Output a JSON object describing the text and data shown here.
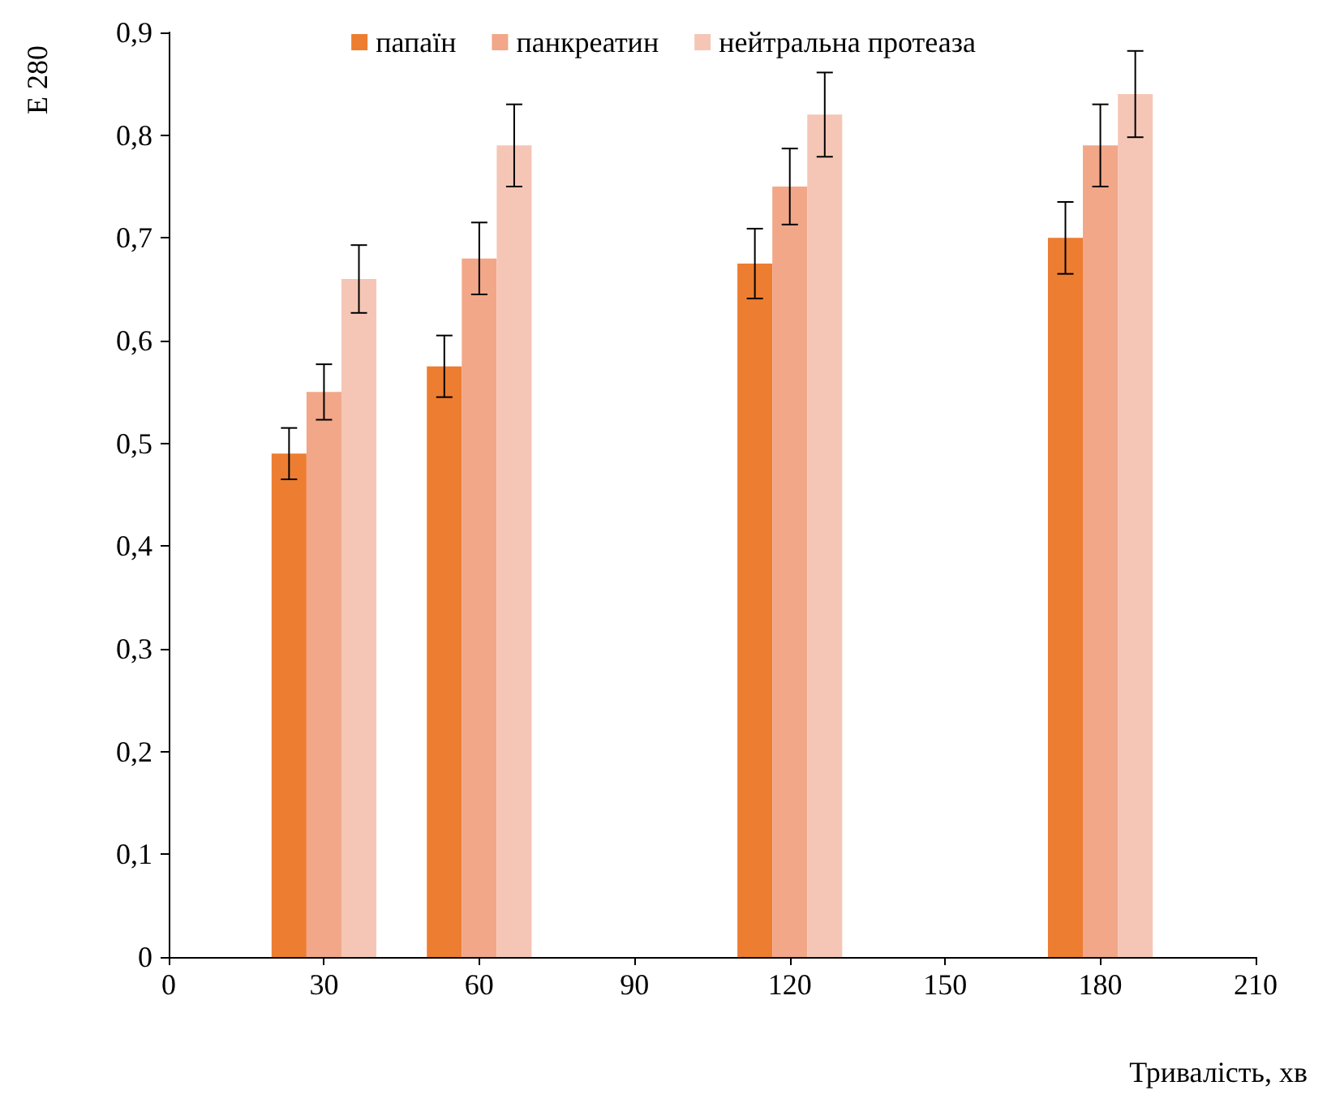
{
  "chart_data": {
    "type": "bar",
    "xlabel": "Тривалість, хв",
    "ylabel": "E 280",
    "x": [
      30,
      60,
      120,
      180
    ],
    "series": [
      {
        "name": "папаїн",
        "color": "#ed7d31",
        "values": [
          0.49,
          0.575,
          0.675,
          0.7
        ],
        "errors": [
          0.025,
          0.03,
          0.034,
          0.035
        ]
      },
      {
        "name": "панкреатин",
        "color": "#f1a788",
        "values": [
          0.55,
          0.68,
          0.75,
          0.79
        ],
        "errors": [
          0.027,
          0.035,
          0.037,
          0.04
        ]
      },
      {
        "name": "нейтральна протеаза",
        "color": "#f5c6b6",
        "values": [
          0.66,
          0.79,
          0.82,
          0.84
        ],
        "errors": [
          0.033,
          0.04,
          0.041,
          0.042
        ]
      }
    ],
    "xlim": [
      0,
      210
    ],
    "xticks": [
      0,
      30,
      60,
      90,
      120,
      150,
      180,
      210
    ],
    "ylim": [
      0,
      0.9
    ],
    "yticks": [
      0,
      {
        "value": 0.1,
        "label": "0,1"
      },
      {
        "value": 0.2,
        "label": "0,2"
      },
      {
        "value": 0.3,
        "label": "0,3"
      },
      {
        "value": 0.4,
        "label": "0,4"
      },
      {
        "value": 0.5,
        "label": "0,5"
      },
      {
        "value": 0.6,
        "label": "0,6"
      },
      {
        "value": 0.7,
        "label": "0,7"
      },
      {
        "value": 0.8,
        "label": "0,8"
      },
      {
        "value": 0.9,
        "label": "0,9"
      }
    ],
    "grid": false,
    "legend": "top"
  }
}
